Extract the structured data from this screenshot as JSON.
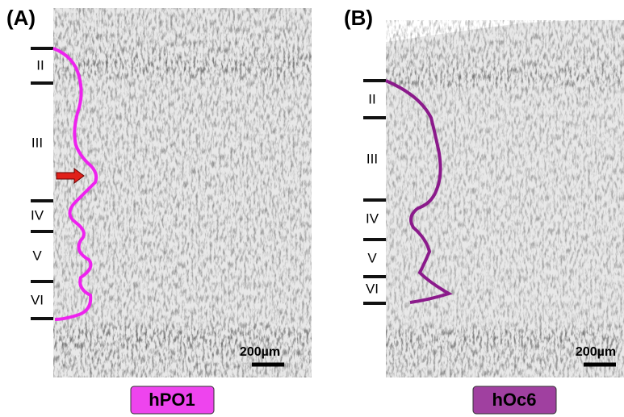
{
  "panels": [
    {
      "label": "(A)",
      "layers": [
        "II",
        "III",
        "IV",
        "V",
        "VI"
      ],
      "scale_bar": "200µm",
      "area": "hPO1"
    },
    {
      "label": "(B)",
      "layers": [
        "II",
        "III",
        "IV",
        "V",
        "VI"
      ],
      "scale_bar": "200µm",
      "area": "hOc6"
    }
  ]
}
